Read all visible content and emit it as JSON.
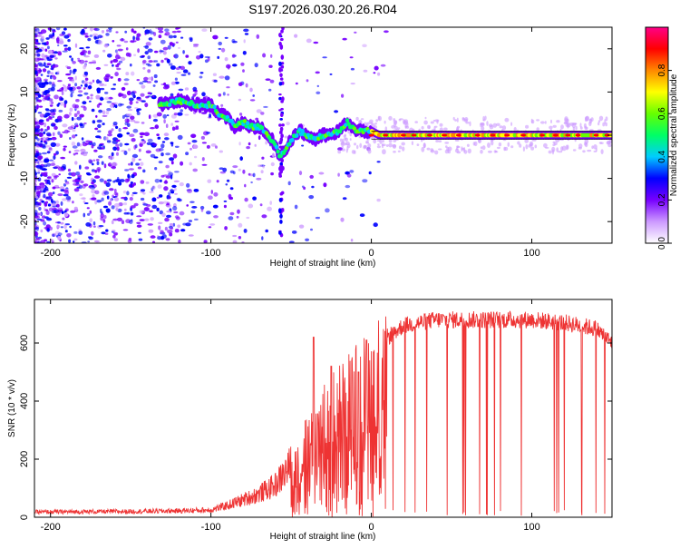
{
  "title": "S197.2026.030.20.26.R04",
  "chart_data": [
    {
      "type": "heatmap",
      "name": "spectrogram",
      "xlabel": "Height of straight line (km)",
      "ylabel": "Frequency (Hz)",
      "xlim": [
        -210,
        150
      ],
      "ylim": [
        -25,
        25
      ],
      "xticks": [
        -200,
        -100,
        0,
        100
      ],
      "yticks": [
        -20,
        -10,
        0,
        10,
        20
      ],
      "ridge": [
        [
          -130,
          7
        ],
        [
          -120,
          8
        ],
        [
          -110,
          7
        ],
        [
          -100,
          7
        ],
        [
          -95,
          5
        ],
        [
          -90,
          4
        ],
        [
          -85,
          2
        ],
        [
          -80,
          3
        ],
        [
          -75,
          2
        ],
        [
          -70,
          2
        ],
        [
          -65,
          0
        ],
        [
          -60,
          -2
        ],
        [
          -57,
          -5
        ],
        [
          -55,
          -4
        ],
        [
          -50,
          -1
        ],
        [
          -45,
          1
        ],
        [
          -40,
          0
        ],
        [
          -35,
          -1
        ],
        [
          -30,
          0
        ],
        [
          -25,
          0
        ],
        [
          -20,
          1
        ],
        [
          -15,
          3
        ],
        [
          -10,
          1
        ],
        [
          -5,
          1
        ],
        [
          0,
          1
        ],
        [
          5,
          0
        ],
        [
          10,
          0
        ],
        [
          50,
          0
        ],
        [
          100,
          0
        ],
        [
          150,
          0
        ]
      ],
      "colorbar": {
        "label": "Normalized spectral amplitude",
        "range": [
          0,
          1
        ],
        "ticks": [
          "0.0",
          "0.2",
          "0.4",
          "0.6",
          "0.8"
        ],
        "colors": [
          "#ffffff",
          "#cc99ff",
          "#7700ff",
          "#0000ff",
          "#00ccff",
          "#00ff66",
          "#66ff00",
          "#ffff00",
          "#ff8800",
          "#ff0000",
          "#ff0088"
        ]
      }
    },
    {
      "type": "line",
      "name": "snr",
      "xlabel": "Height of straight line (km)",
      "ylabel": "SNR (10 * v/v)",
      "xlim": [
        -210,
        150
      ],
      "ylim": [
        0,
        750
      ],
      "xticks": [
        -200,
        -100,
        0,
        100
      ],
      "yticks": [
        0,
        200,
        400,
        600
      ],
      "color": "#ee3333",
      "envelope": [
        [
          -210,
          18
        ],
        [
          -150,
          20
        ],
        [
          -120,
          22
        ],
        [
          -100,
          25
        ],
        [
          -90,
          40
        ],
        [
          -80,
          60
        ],
        [
          -70,
          80
        ],
        [
          -60,
          110
        ],
        [
          -50,
          180
        ],
        [
          -40,
          300
        ],
        [
          -30,
          380
        ],
        [
          -20,
          450
        ],
        [
          -10,
          500
        ],
        [
          0,
          560
        ],
        [
          10,
          620
        ],
        [
          20,
          660
        ],
        [
          40,
          680
        ],
        [
          60,
          680
        ],
        [
          80,
          680
        ],
        [
          100,
          680
        ],
        [
          120,
          670
        ],
        [
          140,
          650
        ],
        [
          150,
          600
        ]
      ],
      "peaks": [
        [
          -36,
          620
        ],
        [
          -25,
          520
        ],
        [
          -3,
          610
        ],
        [
          -8,
          500
        ]
      ]
    }
  ]
}
